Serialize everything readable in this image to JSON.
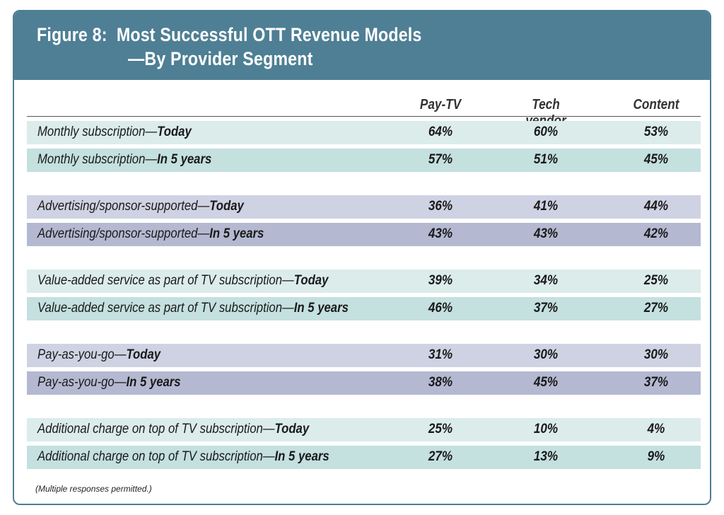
{
  "title_line1": "Figure 8:  Most Successful OTT Revenue Models",
  "title_line2": "—By Provider Segment",
  "footnote": "(Multiple responses permitted.)",
  "colors": {
    "header": "#4e7f94",
    "teal_light": "#dbeceb",
    "teal": "#c4e0df",
    "lav_light": "#cfd2e3",
    "lav": "#b4b9d1"
  },
  "chart_data": {
    "type": "table",
    "columns": [
      "Pay-TV",
      "Tech vendor",
      "Content"
    ],
    "rows": [
      {
        "label": "Monthly subscription—",
        "period": "Today",
        "values": [
          "64%",
          "60%",
          "53%"
        ],
        "group": 0
      },
      {
        "label": "Monthly subscription—",
        "period": "In 5 years",
        "values": [
          "57%",
          "51%",
          "45%"
        ],
        "group": 0
      },
      {
        "label": "Advertising/sponsor-supported—",
        "period": "Today",
        "values": [
          "36%",
          "41%",
          "44%"
        ],
        "group": 1
      },
      {
        "label": "Advertising/sponsor-supported—",
        "period": "In 5 years",
        "values": [
          "43%",
          "43%",
          "42%"
        ],
        "group": 1
      },
      {
        "label": "Value-added service as part of TV subscription—",
        "period": "Today",
        "values": [
          "39%",
          "34%",
          "25%"
        ],
        "group": 2
      },
      {
        "label": "Value-added service as part of TV subscription—",
        "period": "In 5 years",
        "values": [
          "46%",
          "37%",
          "27%"
        ],
        "group": 2
      },
      {
        "label": "Pay-as-you-go—",
        "period": "Today",
        "values": [
          "31%",
          "30%",
          "30%"
        ],
        "group": 3
      },
      {
        "label": "Pay-as-you-go—",
        "period": "In 5 years",
        "values": [
          "38%",
          "45%",
          "37%"
        ],
        "group": 3
      },
      {
        "label": "Additional charge on top of TV subscription—",
        "period": "Today",
        "values": [
          "25%",
          "10%",
          "4%"
        ],
        "group": 4
      },
      {
        "label": "Additional charge on top of TV subscription—",
        "period": "In 5 years",
        "values": [
          "27%",
          "13%",
          "9%"
        ],
        "group": 4
      }
    ]
  }
}
